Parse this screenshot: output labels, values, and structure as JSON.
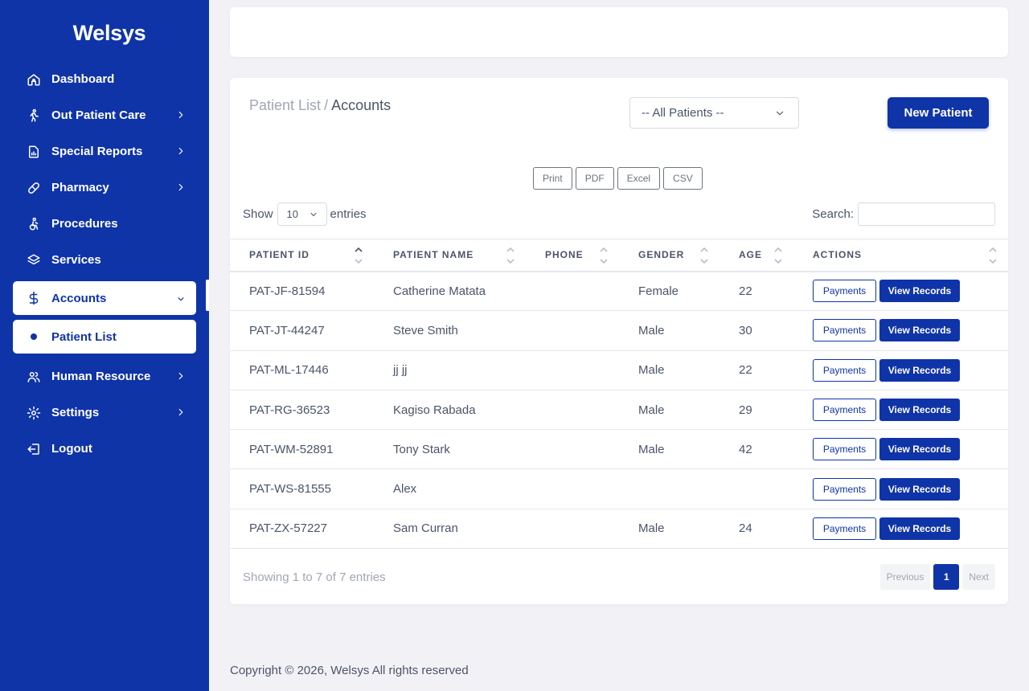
{
  "brand": "Welsys",
  "sidebar": {
    "items": [
      {
        "label": "Dashboard"
      },
      {
        "label": "Out Patient Care"
      },
      {
        "label": "Special Reports"
      },
      {
        "label": "Pharmacy"
      },
      {
        "label": "Procedures"
      },
      {
        "label": "Services"
      },
      {
        "label": "Accounts"
      },
      {
        "label": "Patient List"
      },
      {
        "label": "Human Resource"
      },
      {
        "label": "Settings"
      },
      {
        "label": "Logout"
      }
    ]
  },
  "breadcrumb": {
    "parent": "Patient List",
    "separator": "/",
    "current": "Accounts"
  },
  "filter": {
    "selected": "-- All Patients --"
  },
  "new_patient_label": "New Patient",
  "export_buttons": [
    "Print",
    "PDF",
    "Excel",
    "CSV"
  ],
  "length": {
    "prefix": "Show",
    "value": "10",
    "suffix": "entries"
  },
  "search": {
    "label": "Search:",
    "value": ""
  },
  "table": {
    "columns": [
      "PATIENT ID",
      "PATIENT NAME",
      "PHONE",
      "GENDER",
      "AGE",
      "ACTIONS"
    ],
    "rows": [
      {
        "id": "PAT-JF-81594",
        "name": "Catherine Matata",
        "phone": "",
        "gender": "Female",
        "age": "22"
      },
      {
        "id": "PAT-JT-44247",
        "name": "Steve Smith",
        "phone": "",
        "gender": "Male",
        "age": "30"
      },
      {
        "id": "PAT-ML-17446",
        "name": "jj jj",
        "phone": "",
        "gender": "Male",
        "age": "22"
      },
      {
        "id": "PAT-RG-36523",
        "name": "Kagiso Rabada",
        "phone": "",
        "gender": "Male",
        "age": "29"
      },
      {
        "id": "PAT-WM-52891",
        "name": "Tony Stark",
        "phone": "",
        "gender": "Male",
        "age": "42"
      },
      {
        "id": "PAT-WS-81555",
        "name": "Alex",
        "phone": "",
        "gender": "",
        "age": ""
      },
      {
        "id": "PAT-ZX-57227",
        "name": "Sam Curran",
        "phone": "",
        "gender": "Male",
        "age": "24"
      }
    ],
    "payments_label": "Payments",
    "view_records_label": "View Records"
  },
  "info": "Showing 1 to 7 of 7 entries",
  "pager": {
    "previous": "Previous",
    "current": "1",
    "next": "Next"
  },
  "footer": "Copyright © 2026, Welsys All rights reserved"
}
